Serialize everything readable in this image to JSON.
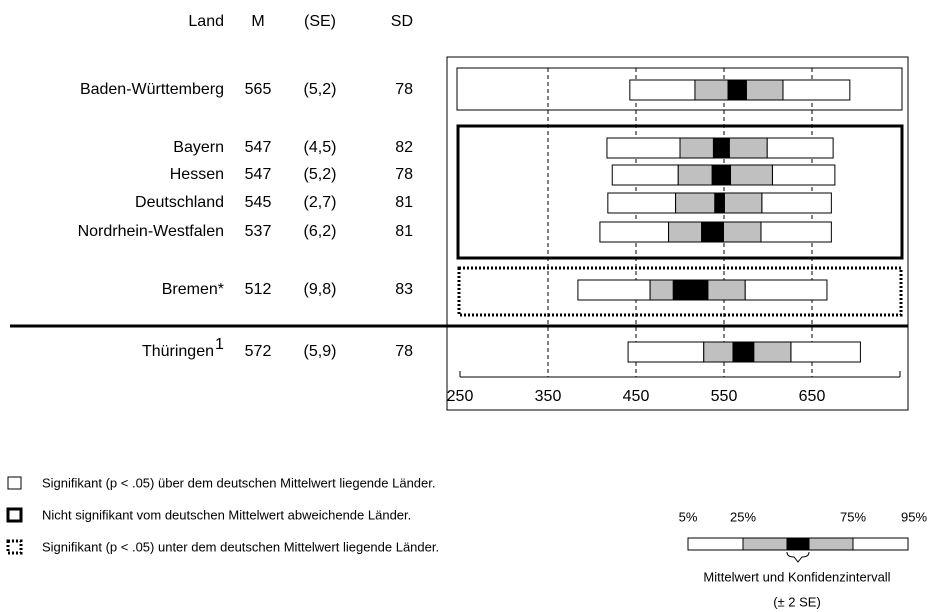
{
  "chart_data": {
    "type": "percentile",
    "columns": [
      "Land",
      "M",
      "(SE)",
      "SD"
    ],
    "rows": [
      {
        "name": "Baden-Württemberg",
        "M": 565,
        "SE": 5.2,
        "SE_label": "(5,2)",
        "SD": 78,
        "p5": 443,
        "p25": 517,
        "p75": 617,
        "p95": 693
      },
      {
        "name": "Bayern",
        "M": 547,
        "SE": 4.5,
        "SE_label": "(4,5)",
        "SD": 82,
        "p5": 417,
        "p25": 500,
        "p75": 599,
        "p95": 674
      },
      {
        "name": "Hessen",
        "M": 547,
        "SE": 5.2,
        "SE_label": "(5,2)",
        "SD": 78,
        "p5": 423,
        "p25": 498,
        "p75": 605,
        "p95": 676
      },
      {
        "name": "Deutschland",
        "M": 545,
        "SE": 2.7,
        "SE_label": "(2,7)",
        "SD": 81,
        "p5": 418,
        "p25": 495,
        "p75": 593,
        "p95": 672
      },
      {
        "name": "Nordrhein-Westfalen",
        "M": 537,
        "SE": 6.2,
        "SE_label": "(6,2)",
        "SD": 81,
        "p5": 409,
        "p25": 487,
        "p75": 592,
        "p95": 672
      },
      {
        "name": "Bremen*",
        "M": 512,
        "SE": 9.8,
        "SE_label": "(9,8)",
        "SD": 83,
        "p5": 384,
        "p25": 466,
        "p75": 574,
        "p95": 667
      },
      {
        "name": "Thüringen",
        "footnote": "1",
        "M": 572,
        "SE": 5.9,
        "SE_label": "(5,9)",
        "SD": 78,
        "p5": 441,
        "p25": 527,
        "p75": 626,
        "p95": 705
      }
    ],
    "xlim": [
      250,
      750
    ],
    "xticks": [
      250,
      350,
      450,
      550,
      650
    ],
    "grid": true,
    "colors": {
      "outer": "#ffffff",
      "quartile": "#c0c0c0",
      "ci": "#000000"
    },
    "legend": [
      "Signifikant (p < .05) über dem deutschen Mittelwert liegende Länder.",
      "Nicht signifikant vom deutschen Mittelwert abweichende Länder.",
      "Signifikant (p < .05) unter dem deutschen Mittelwert liegende Länder."
    ],
    "key": {
      "labels": [
        "5%",
        "25%",
        "75%",
        "95%"
      ],
      "caption": "Mittelwert und Konfidenzintervall",
      "caption2": "(± 2 SE)"
    }
  }
}
